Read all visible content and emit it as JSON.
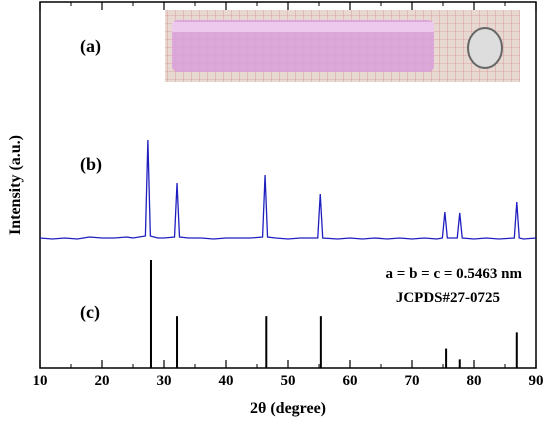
{
  "chart_data": {
    "type": "xrd",
    "xlabel": "2θ (degree)",
    "ylabel": "Intensity (a.u.)",
    "xlim": [
      10,
      90
    ],
    "xticks": [
      10,
      20,
      30,
      40,
      50,
      60,
      70,
      80,
      90
    ],
    "panel_labels": [
      "(a)",
      "(b)",
      "(c)"
    ],
    "annotations": [
      "a = b = c = 0.5463 nm",
      "JCPDS#27-0725"
    ],
    "pattern": {
      "color": "#1f1fbf",
      "x": [
        10,
        12,
        14,
        16,
        18,
        20,
        22,
        24,
        25,
        26,
        27.0,
        27.4,
        27.8,
        29,
        30,
        31.7,
        32.1,
        32.5,
        34,
        36,
        38,
        40,
        42,
        44,
        45.9,
        46.3,
        46.7,
        48,
        50,
        52,
        54.8,
        55.2,
        55.6,
        58,
        60,
        62,
        64,
        66,
        68,
        70,
        72,
        74,
        74.9,
        75.3,
        75.7,
        77.3,
        77.7,
        78.1,
        80,
        82,
        84,
        86.5,
        86.9,
        87.3,
        88,
        90
      ],
      "values": [
        2,
        1,
        2,
        1,
        3,
        2,
        2,
        3,
        2,
        3,
        4,
        100,
        4,
        2,
        2,
        3,
        57,
        3,
        2,
        2,
        1,
        2,
        2,
        2,
        3,
        65,
        3,
        2,
        1,
        2,
        2,
        46,
        2,
        1,
        2,
        1,
        2,
        1,
        2,
        1,
        2,
        1,
        2,
        28,
        2,
        2,
        27,
        2,
        1,
        2,
        1,
        2,
        38,
        2,
        1,
        2
      ]
    },
    "reference": {
      "color": "#000000",
      "x": [
        27.9,
        32.1,
        46.5,
        55.3,
        75.5,
        77.7,
        86.9
      ],
      "values": [
        100,
        48,
        48,
        48,
        18,
        8,
        33
      ]
    }
  }
}
